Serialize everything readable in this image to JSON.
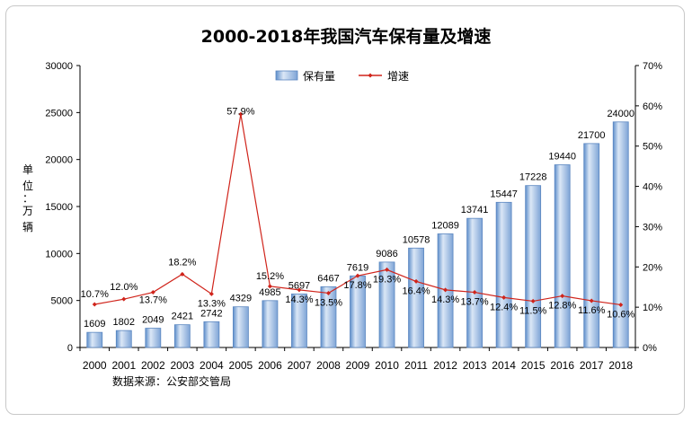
{
  "chart_data": {
    "type": "bar",
    "title": "2000-2018年我国汽车保有量及增速",
    "ylabel_chars": [
      "单",
      "位",
      "：",
      "万",
      "辆"
    ],
    "source_note": "数据来源：公安部交管局",
    "categories": [
      "2000",
      "2001",
      "2002",
      "2003",
      "2004",
      "2005",
      "2006",
      "2007",
      "2008",
      "2009",
      "2010",
      "2011",
      "2012",
      "2013",
      "2014",
      "2015",
      "2016",
      "2017",
      "2018"
    ],
    "series": [
      {
        "name": "保有量",
        "type": "bar",
        "axis": "left",
        "values": [
          1609,
          1802,
          2049,
          2421,
          2742,
          4329,
          4985,
          5697,
          6467,
          7619,
          9086,
          10578,
          12089,
          13741,
          15447,
          17228,
          19440,
          21700,
          24000
        ],
        "labels": [
          "1609",
          "1802",
          "2049",
          "2421",
          "2742",
          "4329",
          "4985",
          "5697",
          "6467",
          "7619",
          "9086",
          "10578",
          "12089",
          "13741",
          "15447",
          "17228",
          "19440",
          "21700",
          "24000"
        ]
      },
      {
        "name": "增速",
        "type": "line",
        "axis": "right",
        "values": [
          10.7,
          12.0,
          13.7,
          18.2,
          13.3,
          57.9,
          15.2,
          14.3,
          13.5,
          17.8,
          19.3,
          16.4,
          14.3,
          13.7,
          12.4,
          11.5,
          12.8,
          11.6,
          10.6
        ],
        "labels": [
          "10.7%",
          "12.0%",
          "13.7%",
          "18.2%",
          "13.3%",
          "57.9%",
          "15.2%",
          "14.3%",
          "13.5%",
          "17.8%",
          "19.3%",
          "16.4%",
          "14.3%",
          "13.7%",
          "12.4%",
          "11.5%",
          "12.8%",
          "11.6%",
          "10.6%"
        ]
      }
    ],
    "left_axis": {
      "ylim": [
        0,
        30000
      ],
      "ticks": [
        "0",
        "5000",
        "10000",
        "15000",
        "20000",
        "25000",
        "30000"
      ]
    },
    "right_axis": {
      "ylim": [
        0,
        70
      ],
      "ticks": [
        "0%",
        "10%",
        "20%",
        "30%",
        "40%",
        "50%",
        "60%",
        "70%"
      ]
    },
    "legend_position": "top-center",
    "grid": false,
    "colors": {
      "bar_light": "#dbe7f6",
      "bar_mid": "#a9c3e6",
      "bar_dark": "#5f8fcb",
      "bar_stroke": "#5a86c0",
      "line": "#d0241b",
      "axis": "#000000"
    }
  }
}
